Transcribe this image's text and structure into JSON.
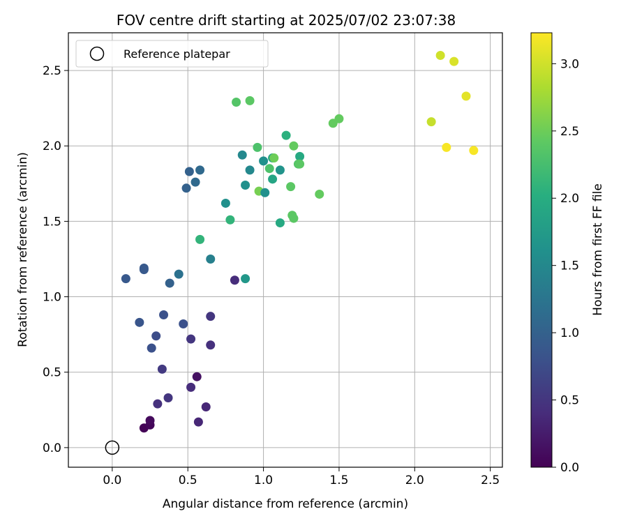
{
  "chart_data": {
    "type": "scatter",
    "title": "FOV centre drift starting at 2025/07/02 23:07:38",
    "xlabel": "Angular distance from reference (arcmin)",
    "ylabel": "Rotation from reference (arcmin)",
    "xlim": [
      -0.29,
      2.58
    ],
    "ylim": [
      -0.13,
      2.75
    ],
    "xticks": [
      0.0,
      0.5,
      1.0,
      1.5,
      2.0,
      2.5
    ],
    "xtick_labels": [
      "0.0",
      "0.5",
      "1.0",
      "1.5",
      "2.0",
      "2.5"
    ],
    "yticks": [
      0.0,
      0.5,
      1.0,
      1.5,
      2.0,
      2.5
    ],
    "ytick_labels": [
      "0.0",
      "0.5",
      "1.0",
      "1.5",
      "2.0",
      "2.5"
    ],
    "grid": true,
    "legend": {
      "placement": "top-left",
      "entries": [
        "Reference platepar"
      ]
    },
    "reference_point": {
      "x": 0.0,
      "y": 0.0,
      "label": "Reference platepar"
    },
    "colorbar": {
      "label": "Hours from first FF file",
      "colormap": "viridis",
      "range": [
        0.0,
        3.23
      ],
      "ticks": [
        0.0,
        0.5,
        1.0,
        1.5,
        2.0,
        2.5,
        3.0
      ],
      "tick_labels": [
        "0.0",
        "0.5",
        "1.0",
        "1.5",
        "2.0",
        "2.5",
        "3.0"
      ]
    },
    "series": [
      {
        "points": [
          {
            "x": 0.21,
            "y": 0.13,
            "c": 0.02
          },
          {
            "x": 0.25,
            "y": 0.15,
            "c": 0.05
          },
          {
            "x": 0.25,
            "y": 0.18,
            "c": 0.08
          },
          {
            "x": 0.57,
            "y": 0.17,
            "c": 0.35
          },
          {
            "x": 0.62,
            "y": 0.27,
            "c": 0.35
          },
          {
            "x": 0.3,
            "y": 0.29,
            "c": 0.45
          },
          {
            "x": 0.37,
            "y": 0.33,
            "c": 0.5
          },
          {
            "x": 0.52,
            "y": 0.4,
            "c": 0.4
          },
          {
            "x": 0.56,
            "y": 0.47,
            "c": 0.15
          },
          {
            "x": 0.33,
            "y": 0.52,
            "c": 0.55
          },
          {
            "x": 0.65,
            "y": 0.68,
            "c": 0.45
          },
          {
            "x": 0.52,
            "y": 0.72,
            "c": 0.5
          },
          {
            "x": 0.65,
            "y": 0.87,
            "c": 0.5
          },
          {
            "x": 0.81,
            "y": 1.11,
            "c": 0.4
          },
          {
            "x": 0.26,
            "y": 0.66,
            "c": 0.8
          },
          {
            "x": 0.29,
            "y": 0.74,
            "c": 0.75
          },
          {
            "x": 0.47,
            "y": 0.82,
            "c": 0.8
          },
          {
            "x": 0.34,
            "y": 0.88,
            "c": 0.8
          },
          {
            "x": 0.18,
            "y": 0.83,
            "c": 0.85
          },
          {
            "x": 0.09,
            "y": 1.12,
            "c": 0.9
          },
          {
            "x": 0.21,
            "y": 1.19,
            "c": 0.9
          },
          {
            "x": 0.21,
            "y": 1.18,
            "c": 0.9
          },
          {
            "x": 0.38,
            "y": 1.09,
            "c": 1.0
          },
          {
            "x": 0.44,
            "y": 1.15,
            "c": 1.2
          },
          {
            "x": 0.65,
            "y": 1.25,
            "c": 1.4
          },
          {
            "x": 0.88,
            "y": 1.12,
            "c": 1.7
          },
          {
            "x": 0.58,
            "y": 1.38,
            "c": 2.1
          },
          {
            "x": 0.49,
            "y": 1.72,
            "c": 1.0
          },
          {
            "x": 0.51,
            "y": 1.83,
            "c": 1.0
          },
          {
            "x": 0.55,
            "y": 1.76,
            "c": 1.1
          },
          {
            "x": 0.58,
            "y": 1.84,
            "c": 1.1
          },
          {
            "x": 0.75,
            "y": 1.62,
            "c": 1.6
          },
          {
            "x": 0.78,
            "y": 1.51,
            "c": 2.1
          },
          {
            "x": 0.86,
            "y": 1.94,
            "c": 1.5
          },
          {
            "x": 0.88,
            "y": 1.74,
            "c": 1.6
          },
          {
            "x": 0.91,
            "y": 1.84,
            "c": 1.5
          },
          {
            "x": 0.97,
            "y": 1.7,
            "c": 2.55
          },
          {
            "x": 0.96,
            "y": 1.99,
            "c": 2.3
          },
          {
            "x": 1.0,
            "y": 1.9,
            "c": 1.6
          },
          {
            "x": 1.01,
            "y": 1.69,
            "c": 1.6
          },
          {
            "x": 1.04,
            "y": 1.85,
            "c": 2.3
          },
          {
            "x": 1.06,
            "y": 1.92,
            "c": 1.9
          },
          {
            "x": 1.07,
            "y": 1.92,
            "c": 2.5
          },
          {
            "x": 1.06,
            "y": 1.78,
            "c": 1.9
          },
          {
            "x": 1.11,
            "y": 1.84,
            "c": 1.65
          },
          {
            "x": 1.11,
            "y": 1.49,
            "c": 1.95
          },
          {
            "x": 1.15,
            "y": 2.07,
            "c": 2.05
          },
          {
            "x": 1.18,
            "y": 1.73,
            "c": 2.4
          },
          {
            "x": 1.19,
            "y": 1.54,
            "c": 2.4
          },
          {
            "x": 1.2,
            "y": 1.52,
            "c": 2.4
          },
          {
            "x": 1.2,
            "y": 2.0,
            "c": 2.45
          },
          {
            "x": 1.24,
            "y": 1.93,
            "c": 1.95
          },
          {
            "x": 1.23,
            "y": 1.88,
            "c": 2.35
          },
          {
            "x": 1.24,
            "y": 1.88,
            "c": 2.4
          },
          {
            "x": 1.37,
            "y": 1.68,
            "c": 2.45
          },
          {
            "x": 0.82,
            "y": 2.29,
            "c": 2.35
          },
          {
            "x": 0.91,
            "y": 2.3,
            "c": 2.4
          },
          {
            "x": 1.46,
            "y": 2.15,
            "c": 2.45
          },
          {
            "x": 1.5,
            "y": 2.18,
            "c": 2.45
          },
          {
            "x": 2.11,
            "y": 2.16,
            "c": 2.95
          },
          {
            "x": 2.17,
            "y": 2.6,
            "c": 3.0
          },
          {
            "x": 2.26,
            "y": 2.56,
            "c": 3.05
          },
          {
            "x": 2.34,
            "y": 2.33,
            "c": 3.1
          },
          {
            "x": 2.21,
            "y": 1.99,
            "c": 3.2
          },
          {
            "x": 2.39,
            "y": 1.97,
            "c": 3.2
          }
        ]
      }
    ]
  }
}
